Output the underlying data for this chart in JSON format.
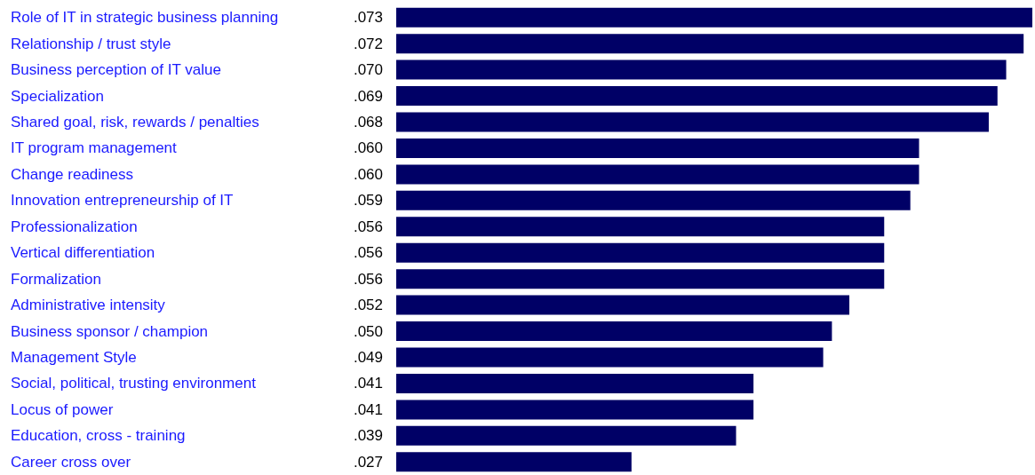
{
  "chart_data": {
    "type": "bar",
    "orientation": "horizontal",
    "categories": [
      "Role of IT in strategic business planning",
      "Relationship / trust style",
      "Business perception of IT value",
      "Specialization",
      "Shared goal, risk, rewards / penalties",
      "IT program management",
      "Change readiness",
      "Innovation entrepreneurship of IT",
      "Professionalization",
      "Vertical differentiation",
      "Formalization",
      "Administrative intensity",
      "Business sponsor / champion",
      "Management Style",
      "Social, political, trusting environment",
      "Locus of power",
      "Education, cross - training",
      "Career cross over"
    ],
    "values": [
      0.073,
      0.072,
      0.07,
      0.069,
      0.068,
      0.06,
      0.06,
      0.059,
      0.056,
      0.056,
      0.056,
      0.052,
      0.05,
      0.049,
      0.041,
      0.041,
      0.039,
      0.027
    ],
    "value_labels": [
      ".073",
      ".072",
      ".070",
      ".069",
      ".068",
      ".060",
      ".060",
      ".059",
      ".056",
      ".056",
      ".056",
      ".052",
      ".050",
      ".049",
      ".041",
      ".041",
      ".039",
      ".027"
    ],
    "color": "#000066"
  }
}
